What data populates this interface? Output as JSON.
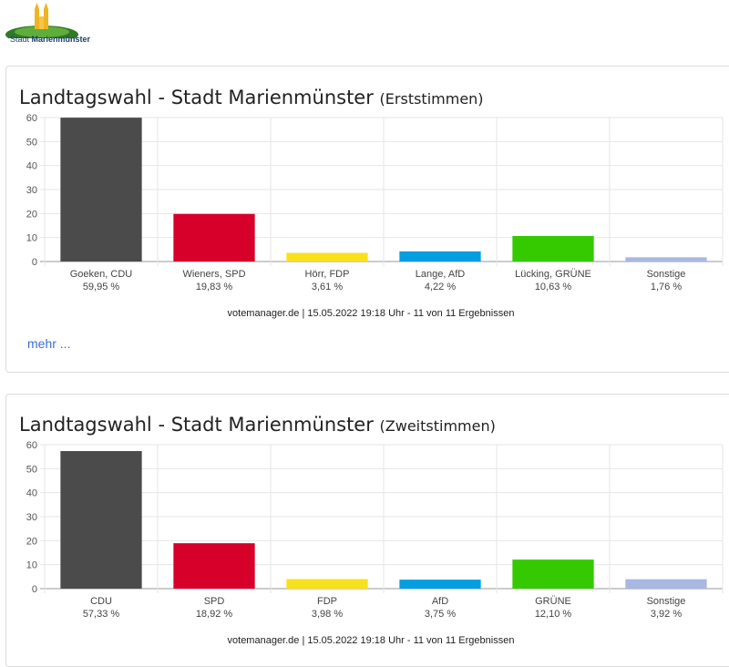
{
  "logo": {
    "text_prefix": "Stadt",
    "text_name": "Marienmünster"
  },
  "more_link": "mehr ...",
  "chart_data": [
    {
      "type": "bar",
      "title": "Landtagswahl - Stadt Marienmünster",
      "subtitle": "(Erststimmen)",
      "categories": [
        "Goeken, CDU",
        "Wieners, SPD",
        "Hörr, FDP",
        "Lange, AfD",
        "Lücking, GRÜNE",
        "Sonstige"
      ],
      "percent_labels": [
        "59,95 %",
        "19,83 %",
        "3,61 %",
        "4,22 %",
        "10,63 %",
        "1,76 %"
      ],
      "values": [
        59.95,
        19.83,
        3.61,
        4.22,
        10.63,
        1.76
      ],
      "colors": [
        "#4b4b4b",
        "#d7002a",
        "#f7e11b",
        "#059ee0",
        "#35c900",
        "#a9b8e3"
      ],
      "ylim": [
        0,
        60
      ],
      "yticks": [
        0,
        10,
        20,
        30,
        40,
        50,
        60
      ],
      "grid": true,
      "footer": "votemanager.de | 15.05.2022 19:18 Uhr - 11 von 11 Ergebnissen"
    },
    {
      "type": "bar",
      "title": "Landtagswahl - Stadt Marienmünster",
      "subtitle": "(Zweitstimmen)",
      "categories": [
        "CDU",
        "SPD",
        "FDP",
        "AfD",
        "GRÜNE",
        "Sonstige"
      ],
      "percent_labels": [
        "57,33 %",
        "18,92 %",
        "3,98 %",
        "3,75 %",
        "12,10 %",
        "3,92 %"
      ],
      "values": [
        57.33,
        18.92,
        3.98,
        3.75,
        12.1,
        3.92
      ],
      "colors": [
        "#4b4b4b",
        "#d7002a",
        "#f7e11b",
        "#059ee0",
        "#35c900",
        "#a9b8e3"
      ],
      "ylim": [
        0,
        60
      ],
      "yticks": [
        0,
        10,
        20,
        30,
        40,
        50,
        60
      ],
      "grid": true,
      "footer": "votemanager.de | 15.05.2022 19:18 Uhr - 11 von 11 Ergebnissen"
    }
  ]
}
